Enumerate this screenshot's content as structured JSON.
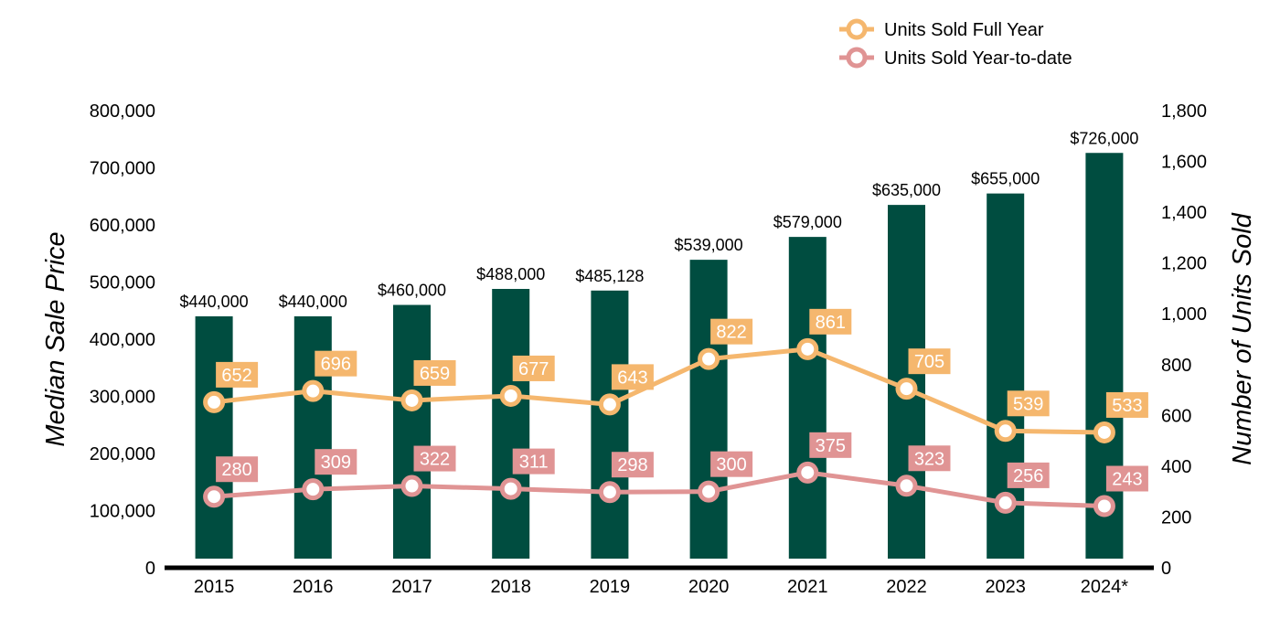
{
  "chart_data": {
    "type": "bar",
    "categories": [
      "2015",
      "2016",
      "2017",
      "2018",
      "2019",
      "2020",
      "2021",
      "2022",
      "2023",
      "2024*"
    ],
    "left_axis": {
      "label": "Median Sale Price",
      "ylim": [
        0,
        800000
      ],
      "ticks": [
        "0",
        "100,000",
        "200,000",
        "300,000",
        "400,000",
        "500,000",
        "600,000",
        "700,000",
        "800,000"
      ]
    },
    "right_axis": {
      "label": "Number of Units Sold",
      "ylim": [
        0,
        1800
      ],
      "ticks": [
        "0",
        "200",
        "400",
        "600",
        "800",
        "1,000",
        "1,200",
        "1,400",
        "1,600",
        "1,800"
      ]
    },
    "bars": {
      "values": [
        440000,
        440000,
        460000,
        488000,
        485128,
        539000,
        579000,
        635000,
        655000,
        726000
      ],
      "labels": [
        "$440,000",
        "$440,000",
        "$460,000",
        "$488,000",
        "$485,128",
        "$539,000",
        "$579,000",
        "$635,000",
        "$655,000",
        "$726,000"
      ],
      "color": "#004d40"
    },
    "series": [
      {
        "name": "Units Sold Full Year",
        "type": "line",
        "axis": "right",
        "values": [
          652,
          696,
          659,
          677,
          643,
          822,
          861,
          705,
          539,
          533
        ],
        "labels": [
          "652",
          "696",
          "659",
          "677",
          "643",
          "822",
          "861",
          "705",
          "539",
          "533"
        ],
        "color": "#f5b76e"
      },
      {
        "name": "Units Sold Year-to-date",
        "type": "line",
        "axis": "right",
        "values": [
          280,
          309,
          322,
          311,
          298,
          300,
          375,
          323,
          256,
          243
        ],
        "labels": [
          "280",
          "309",
          "322",
          "311",
          "298",
          "300",
          "375",
          "323",
          "256",
          "243"
        ],
        "color": "#e09494"
      }
    ],
    "grid": false,
    "legend_position": "top-right"
  }
}
